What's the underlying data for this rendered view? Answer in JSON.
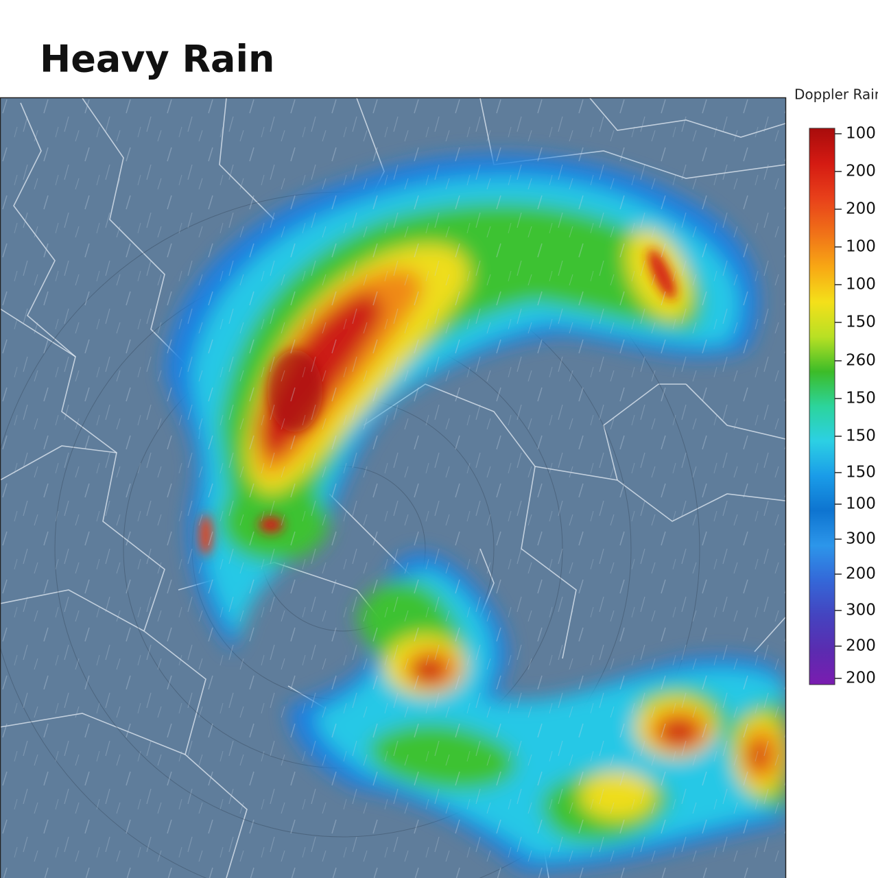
{
  "header": {
    "title": "Heavy Rain"
  },
  "legend": {
    "title": "Doppler Rain",
    "labels": [
      "100",
      "200",
      "200",
      "100",
      "100",
      "150",
      "260",
      "150",
      "150",
      "150",
      "100",
      "300",
      "200",
      "300",
      "200",
      "200"
    ],
    "colors": [
      "#a80c0c",
      "#d41a12",
      "#e8401a",
      "#f07018",
      "#f8a814",
      "#f4e01a",
      "#b8e024",
      "#3cbc28",
      "#2cd49c",
      "#2cd0e4",
      "#1a9ce8",
      "#0e74d0",
      "#2c96ea",
      "#3468d8",
      "#4444c0",
      "#5a2cb0",
      "#7a1cb0"
    ]
  }
}
